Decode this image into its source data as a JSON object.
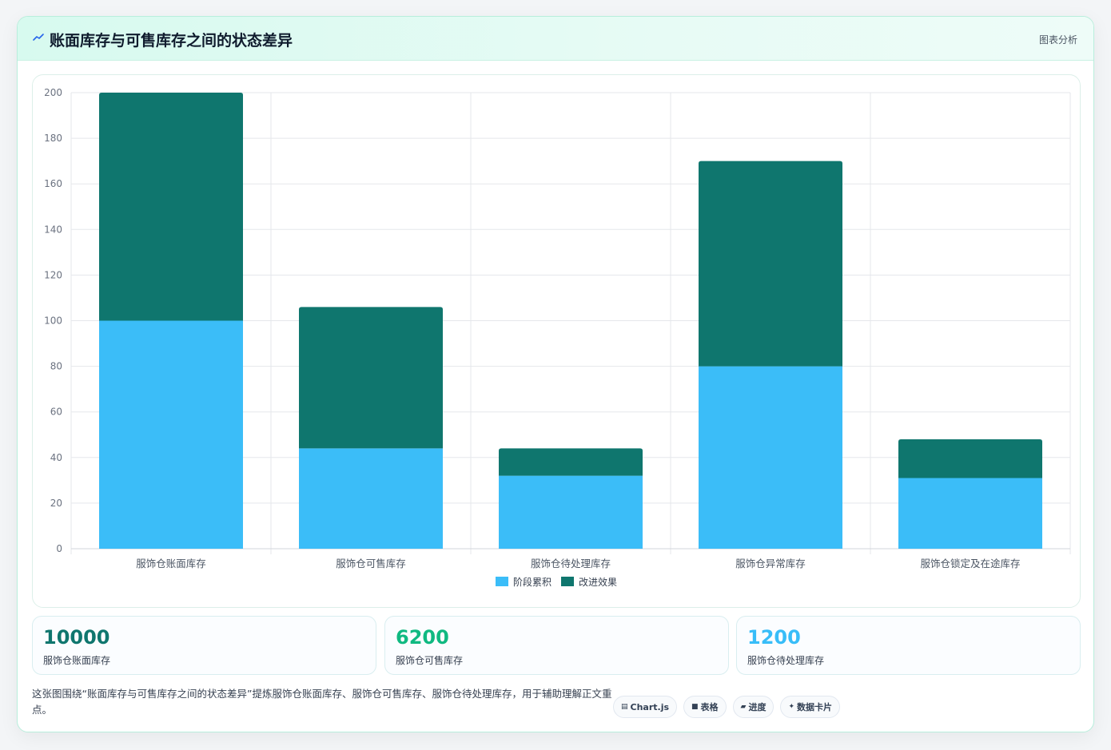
{
  "header": {
    "title": "账面库存与可售库存之间的状态差异",
    "icon": "trend-icon",
    "tag": "图表分析"
  },
  "colors": {
    "series_a": "#3bbdf8",
    "series_b": "#0f766e",
    "kpi_1": "#0f766e",
    "kpi_2": "#10b981",
    "kpi_3": "#38bdf8"
  },
  "chart_data": {
    "type": "bar",
    "stacked": true,
    "categories": [
      "服饰仓账面库存",
      "服饰仓可售库存",
      "服饰仓待处理库存",
      "服饰仓异常库存",
      "服饰仓锁定及在途库存"
    ],
    "series": [
      {
        "name": "阶段累积",
        "values": [
          100,
          44,
          32,
          80,
          31
        ]
      },
      {
        "name": "改进效果",
        "values": [
          100,
          62,
          12,
          90,
          17
        ]
      }
    ],
    "ylim": [
      0,
      200
    ],
    "yticks": [
      0,
      20,
      40,
      60,
      80,
      100,
      120,
      140,
      160,
      180,
      200
    ],
    "grid": true,
    "legend": "bottom"
  },
  "kpis": [
    {
      "value": "10000",
      "label": "服饰仓账面库存"
    },
    {
      "value": "6200",
      "label": "服饰仓可售库存"
    },
    {
      "value": "1200",
      "label": "服饰仓待处理库存"
    }
  ],
  "description": "这张图围绕“账面库存与可售库存之间的状态差异”提炼服饰仓账面库存、服饰仓可售库存、服饰仓待处理库存，用于辅助理解正文重点。",
  "tags": [
    {
      "icon": "chart-icon",
      "label": "Chart.js"
    },
    {
      "icon": "table-icon",
      "label": "表格"
    },
    {
      "icon": "progress-icon",
      "label": "进度"
    },
    {
      "icon": "sparkle-icon",
      "label": "数据卡片"
    }
  ]
}
